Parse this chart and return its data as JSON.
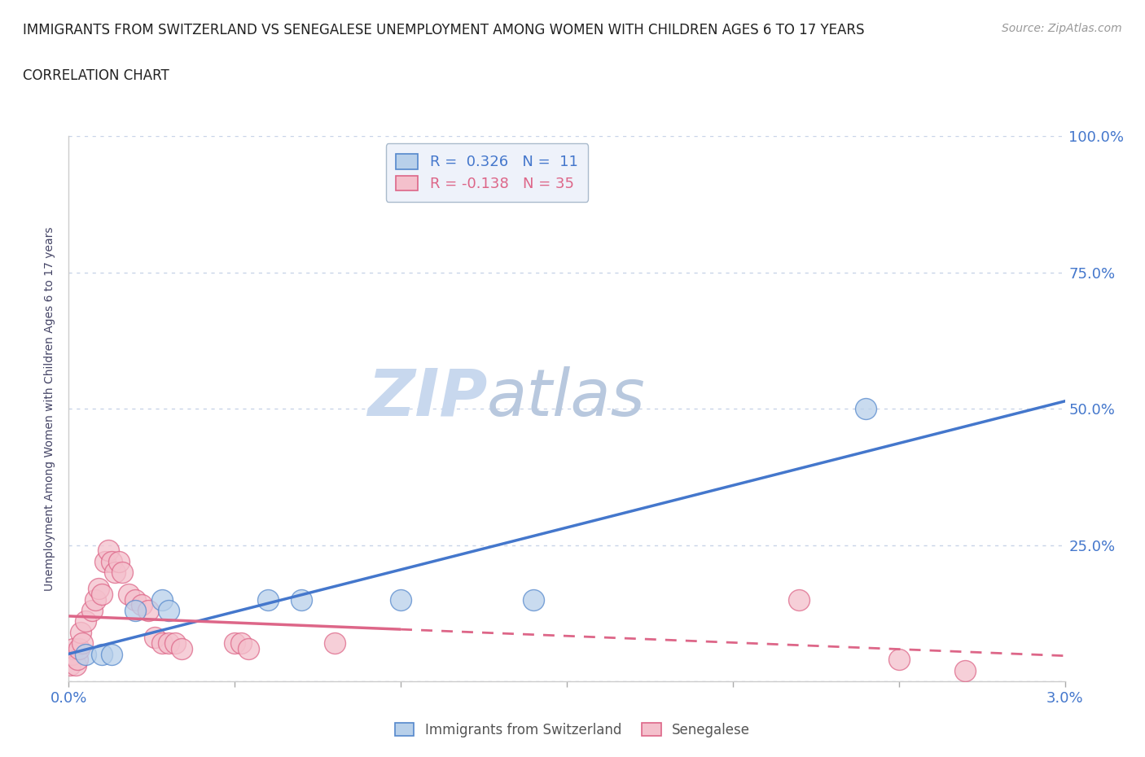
{
  "title": "IMMIGRANTS FROM SWITZERLAND VS SENEGALESE UNEMPLOYMENT AMONG WOMEN WITH CHILDREN AGES 6 TO 17 YEARS",
  "subtitle": "CORRELATION CHART",
  "source": "Source: ZipAtlas.com",
  "ylabel": "Unemployment Among Women with Children Ages 6 to 17 years",
  "xlim": [
    0.0,
    0.03
  ],
  "ylim": [
    0.0,
    1.0
  ],
  "xticks": [
    0.0,
    0.005,
    0.01,
    0.015,
    0.02,
    0.025,
    0.03
  ],
  "xticklabels": [
    "0.0%",
    "",
    "",
    "",
    "",
    "",
    "3.0%"
  ],
  "yticks": [
    0.0,
    0.25,
    0.5,
    0.75,
    1.0
  ],
  "yticklabels": [
    "",
    "25.0%",
    "50.0%",
    "75.0%",
    "100.0%"
  ],
  "blue_r": 0.326,
  "blue_n": 11,
  "pink_r": -0.138,
  "pink_n": 35,
  "blue_color": "#b8d0ea",
  "blue_edge_color": "#5588cc",
  "blue_line_color": "#4477cc",
  "pink_color": "#f4c0cc",
  "pink_edge_color": "#dd6688",
  "pink_line_color": "#dd6688",
  "blue_scatter": [
    [
      0.0005,
      0.05
    ],
    [
      0.001,
      0.05
    ],
    [
      0.0013,
      0.05
    ],
    [
      0.002,
      0.13
    ],
    [
      0.0028,
      0.15
    ],
    [
      0.003,
      0.13
    ],
    [
      0.006,
      0.15
    ],
    [
      0.007,
      0.15
    ],
    [
      0.01,
      0.15
    ],
    [
      0.014,
      0.15
    ],
    [
      0.024,
      0.5
    ]
  ],
  "pink_scatter": [
    [
      5e-05,
      0.03
    ],
    [
      0.0001,
      0.05
    ],
    [
      0.00015,
      0.06
    ],
    [
      0.0002,
      0.03
    ],
    [
      0.00025,
      0.04
    ],
    [
      0.0003,
      0.06
    ],
    [
      0.00035,
      0.09
    ],
    [
      0.0004,
      0.07
    ],
    [
      0.0005,
      0.11
    ],
    [
      0.0007,
      0.13
    ],
    [
      0.0008,
      0.15
    ],
    [
      0.0009,
      0.17
    ],
    [
      0.001,
      0.16
    ],
    [
      0.0011,
      0.22
    ],
    [
      0.0012,
      0.24
    ],
    [
      0.0013,
      0.22
    ],
    [
      0.0014,
      0.2
    ],
    [
      0.0015,
      0.22
    ],
    [
      0.0016,
      0.2
    ],
    [
      0.0018,
      0.16
    ],
    [
      0.002,
      0.15
    ],
    [
      0.0022,
      0.14
    ],
    [
      0.0024,
      0.13
    ],
    [
      0.0026,
      0.08
    ],
    [
      0.0028,
      0.07
    ],
    [
      0.003,
      0.07
    ],
    [
      0.0032,
      0.07
    ],
    [
      0.0034,
      0.06
    ],
    [
      0.005,
      0.07
    ],
    [
      0.0052,
      0.07
    ],
    [
      0.0054,
      0.06
    ],
    [
      0.008,
      0.07
    ],
    [
      0.022,
      0.15
    ],
    [
      0.025,
      0.04
    ],
    [
      0.027,
      0.02
    ]
  ],
  "background_color": "#ffffff",
  "grid_color": "#c8d4e8",
  "title_color": "#222222",
  "axis_label_color": "#444466",
  "tick_label_color": "#4477cc",
  "legend_facecolor": "#eef2fa",
  "legend_edgecolor": "#aabbcc",
  "watermark_zip": "ZIP",
  "watermark_atlas": "atlas",
  "watermark_color_zip": "#c8d8ee",
  "watermark_color_atlas": "#b8c8de"
}
